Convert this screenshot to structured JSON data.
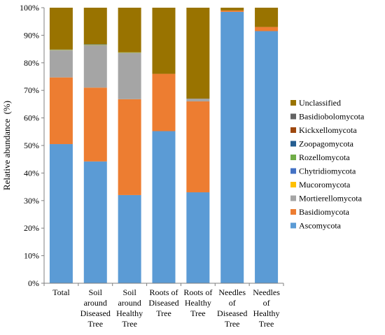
{
  "chart_data": {
    "type": "bar",
    "stacked": true,
    "ylabel": "Relative abundance  (%)",
    "ylim": [
      0,
      100
    ],
    "yticks": [
      "0%",
      "10%",
      "20%",
      "30%",
      "40%",
      "50%",
      "60%",
      "70%",
      "80%",
      "90%",
      "100%"
    ],
    "grid": false,
    "legend_position": "right",
    "categories": [
      [
        "Total"
      ],
      [
        "Soil",
        "around",
        "Diseased",
        "Tree"
      ],
      [
        "Soil",
        "around",
        "Healthy",
        "Tree"
      ],
      [
        "Roots of",
        "Diseased",
        "Tree"
      ],
      [
        "Roots of",
        "Healthy",
        "Tree"
      ],
      [
        "Needles",
        "of",
        "Diseased",
        "Tree"
      ],
      [
        "Needles",
        "of",
        "Healthy",
        "Tree"
      ]
    ],
    "series": [
      {
        "name": "Ascomycota",
        "color": "#5b9bd5",
        "values": [
          50.5,
          44.2,
          32.0,
          55.2,
          33.0,
          98.5,
          91.5
        ]
      },
      {
        "name": "Basidiomycota",
        "color": "#ed7d31",
        "values": [
          24.2,
          26.8,
          34.8,
          20.8,
          33.0,
          0.5,
          1.5
        ]
      },
      {
        "name": "Mortierellomycota",
        "color": "#a5a5a5",
        "values": [
          9.8,
          15.3,
          16.7,
          0.0,
          1.0,
          0.0,
          0.0
        ]
      },
      {
        "name": "Mucoromycota",
        "color": "#ffc000",
        "values": [
          0.1,
          0.1,
          0.1,
          0.0,
          0.0,
          0.0,
          0.0
        ]
      },
      {
        "name": "Chytridiomycota",
        "color": "#4472c4",
        "values": [
          0.1,
          0.1,
          0.1,
          0.0,
          0.0,
          0.0,
          0.0
        ]
      },
      {
        "name": "Rozellomycota",
        "color": "#70ad47",
        "values": [
          0.1,
          0.1,
          0.1,
          0.0,
          0.0,
          0.0,
          0.0
        ]
      },
      {
        "name": "Zoopagomycota",
        "color": "#255e91",
        "values": [
          0.0,
          0.1,
          0.0,
          0.0,
          0.0,
          0.0,
          0.0
        ]
      },
      {
        "name": "Kickxellomycota",
        "color": "#9e480e",
        "values": [
          0.0,
          0.0,
          0.0,
          0.0,
          0.0,
          0.0,
          0.0
        ]
      },
      {
        "name": "Basidiobolomycota",
        "color": "#636363",
        "values": [
          0.0,
          0.0,
          0.0,
          0.0,
          0.0,
          0.0,
          0.0
        ]
      },
      {
        "name": "Unclassified",
        "color": "#997300",
        "values": [
          15.2,
          13.3,
          16.2,
          24.0,
          33.0,
          1.0,
          7.0
        ]
      }
    ]
  }
}
